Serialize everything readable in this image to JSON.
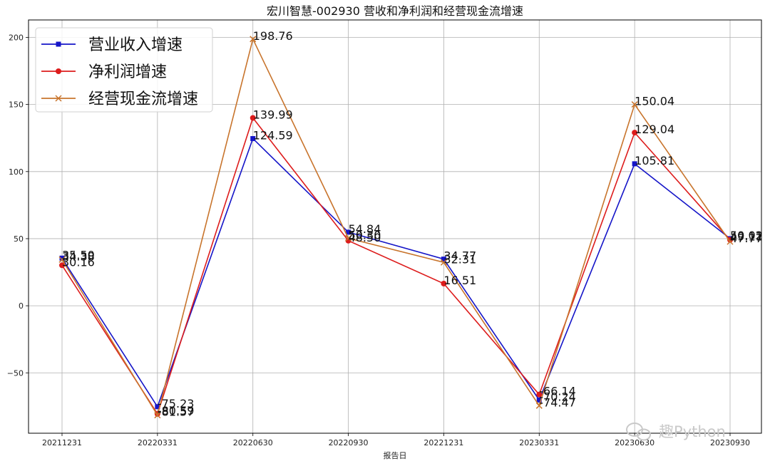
{
  "chart_data": {
    "type": "line",
    "title": "宏川智慧-002930 营收和净利润和经营现金流增速",
    "xlabel": "报告日",
    "ylabel": "",
    "categories": [
      "20211231",
      "20220331",
      "20220630",
      "20220930",
      "20221231",
      "20230331",
      "20230630",
      "20230930"
    ],
    "ylim": [
      -95,
      213
    ],
    "yticks": [
      -50,
      0,
      50,
      100,
      150,
      200
    ],
    "ytick_labels": [
      "−50",
      "0",
      "50",
      "100",
      "150",
      "200"
    ],
    "grid": true,
    "legend_position": "top-left",
    "series": [
      {
        "name": "营业收入增速",
        "color": "#1515c8",
        "marker": "square",
        "values": [
          35.5,
          -75.23,
          124.59,
          54.84,
          34.77,
          -70.24,
          105.81,
          50.02
        ],
        "labels": [
          "35.50",
          "-75.23",
          "124.59",
          "54.84",
          "34.77",
          "-70.24",
          "105.81",
          "50.02"
        ]
      },
      {
        "name": "净利润增速",
        "color": "#dd1c1c",
        "marker": "circle",
        "values": [
          30.16,
          -80.59,
          139.99,
          48.5,
          16.51,
          -66.14,
          129.04,
          49.11
        ],
        "labels": [
          "30.16",
          "-80.59",
          "139.99",
          "48.50",
          "16.51",
          "-66.14",
          "129.04",
          "49.11"
        ]
      },
      {
        "name": "经营现金流增速",
        "color": "#c8742c",
        "marker": "x",
        "values": [
          34.38,
          -81.57,
          198.76,
          50.3,
          32.31,
          -74.47,
          150.04,
          47.77
        ],
        "labels": [
          "34.38",
          "-81.57",
          "198.76",
          "50.30",
          "32.31",
          "-74.47",
          "150.04",
          "47.77"
        ]
      }
    ]
  },
  "watermark": {
    "text": "趣Python",
    "icon": "wechat-icon"
  }
}
